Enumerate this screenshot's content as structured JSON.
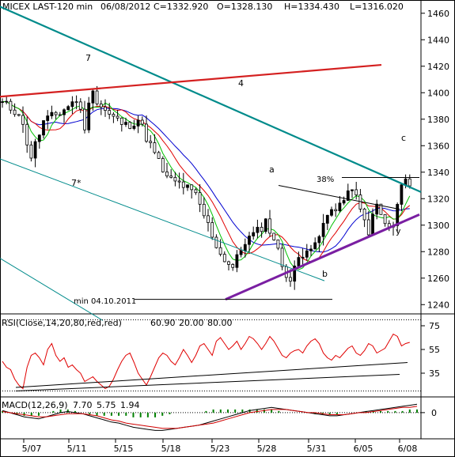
{
  "header": {
    "symbol": "MICEX LAST-120 min",
    "date": "06/08/2012",
    "close": "C=1332.920",
    "open": "O=1328.130",
    "high": "H=1334.430",
    "low": "L=1316.020"
  },
  "chart_data": [
    {
      "type": "candlestick",
      "title": "MICEX LAST-120 min",
      "x_tick_labels": [
        "5/07",
        "5/11",
        "5/15",
        "5/18",
        "5/23",
        "5/28",
        "5/31",
        "6/05",
        "6/08"
      ],
      "y_tick_labels": [
        "1240",
        "1260",
        "1280",
        "1300",
        "1320",
        "1340",
        "1360",
        "1380",
        "1400",
        "1420",
        "1440",
        "1460"
      ],
      "ylim": [
        1233,
        1470
      ],
      "bars": 100,
      "close_path": [
        [
          0,
          1392
        ],
        [
          4,
          1385
        ],
        [
          7,
          1352
        ],
        [
          10,
          1378
        ],
        [
          14,
          1385
        ],
        [
          18,
          1395
        ],
        [
          20,
          1375
        ],
        [
          22,
          1405
        ],
        [
          23,
          1393
        ],
        [
          26,
          1383
        ],
        [
          30,
          1375
        ],
        [
          33,
          1380
        ],
        [
          36,
          1360
        ],
        [
          40,
          1335
        ],
        [
          44,
          1330
        ],
        [
          47,
          1322
        ],
        [
          50,
          1300
        ],
        [
          53,
          1278
        ],
        [
          56,
          1268
        ],
        [
          59,
          1288
        ],
        [
          62,
          1295
        ],
        [
          64,
          1303
        ],
        [
          66,
          1290
        ],
        [
          68,
          1270
        ],
        [
          70,
          1258
        ],
        [
          72,
          1275
        ],
        [
          74,
          1284
        ],
        [
          76,
          1283
        ],
        [
          78,
          1300
        ],
        [
          80,
          1312
        ],
        [
          82,
          1316
        ],
        [
          84,
          1322
        ],
        [
          85,
          1330
        ],
        [
          87,
          1310
        ],
        [
          89,
          1296
        ],
        [
          91,
          1315
        ],
        [
          93,
          1300
        ],
        [
          95,
          1298
        ],
        [
          96,
          1315
        ],
        [
          97,
          1330
        ],
        [
          99,
          1333
        ]
      ],
      "annotations": {
        "trend_label_7": "7",
        "trend_label_7star": "7*",
        "trend_label_4": "4",
        "wave_a": "a",
        "wave_b": "b",
        "wave_c": "c",
        "wave_y": "y",
        "fib_label": "38%",
        "min_label": "min 04.10.2011",
        "min_level": 1244
      },
      "colors": {
        "up": "#000000",
        "down": "#ffffff",
        "green_ma": "#00c000",
        "red_ma": "#e00000",
        "blue_ma": "#0000d0",
        "teal_line": "#008b8b",
        "red_line": "#d42020",
        "purple_line": "#7a1fa2"
      }
    },
    {
      "type": "line",
      "title": "RSI",
      "label": "RSI(Close,14,20,80,red,red)",
      "value": "60.90",
      "levels": [
        "20.00",
        "80.00"
      ],
      "y_tick_labels": [
        "75",
        "55",
        "35"
      ],
      "ylim": [
        15,
        85
      ],
      "series": [
        {
          "values": [
            45,
            40,
            38,
            30,
            25,
            22,
            40,
            50,
            52,
            48,
            42,
            55,
            60,
            50,
            45,
            48,
            40,
            42,
            38,
            35,
            28,
            30,
            32,
            28,
            25,
            22,
            24,
            30,
            38,
            45,
            50,
            52,
            44,
            35,
            30,
            25,
            32,
            40,
            48,
            52,
            50,
            45,
            42,
            48,
            55,
            50,
            44,
            50,
            58,
            60,
            55,
            50,
            62,
            65,
            60,
            55,
            58,
            62,
            55,
            60,
            66,
            64,
            60,
            55,
            60,
            66,
            62,
            56,
            50,
            48,
            52,
            54,
            55,
            52,
            58,
            62,
            64,
            60,
            52,
            48,
            46,
            50,
            48,
            52,
            56,
            58,
            52,
            50,
            54,
            60,
            58,
            52,
            54,
            56,
            62,
            68,
            66,
            58,
            60,
            61
          ]
        }
      ]
    },
    {
      "type": "line",
      "title": "MACD",
      "label": "MACD(12,26,9)",
      "values_text": [
        "7.70",
        "5.75",
        "1.94"
      ],
      "y_tick_labels": [
        "0"
      ],
      "ylim": [
        -25,
        15
      ],
      "series": [
        {
          "values": [
            2,
            0,
            -2,
            -4,
            -5,
            -6,
            -4,
            -2,
            0,
            1,
            0,
            -1,
            -3,
            -5,
            -7,
            -9,
            -10,
            -12,
            -14,
            -15,
            -16,
            -17,
            -17,
            -16,
            -15,
            -14,
            -13,
            -12,
            -10,
            -8,
            -6,
            -4,
            -2,
            0,
            2,
            3,
            4,
            5,
            4,
            3,
            2,
            1,
            0,
            -1,
            -2,
            -3,
            -3,
            -2,
            -1,
            0,
            1,
            2,
            3,
            4,
            5,
            6,
            7,
            8
          ]
        },
        {
          "values": [
            1,
            0,
            -1,
            -2,
            -3,
            -4,
            -4,
            -3,
            -2,
            -1,
            -1,
            -1,
            -2,
            -3,
            -5,
            -7,
            -8,
            -10,
            -11,
            -12,
            -13,
            -14,
            -15,
            -15,
            -15,
            -14,
            -13,
            -12,
            -11,
            -10,
            -8,
            -6,
            -4,
            -2,
            0,
            1,
            2,
            3,
            3,
            3,
            2,
            1,
            0,
            0,
            -1,
            -2,
            -2,
            -2,
            -1,
            0,
            0,
            1,
            2,
            3,
            4,
            5,
            5,
            6
          ]
        }
      ]
    }
  ]
}
